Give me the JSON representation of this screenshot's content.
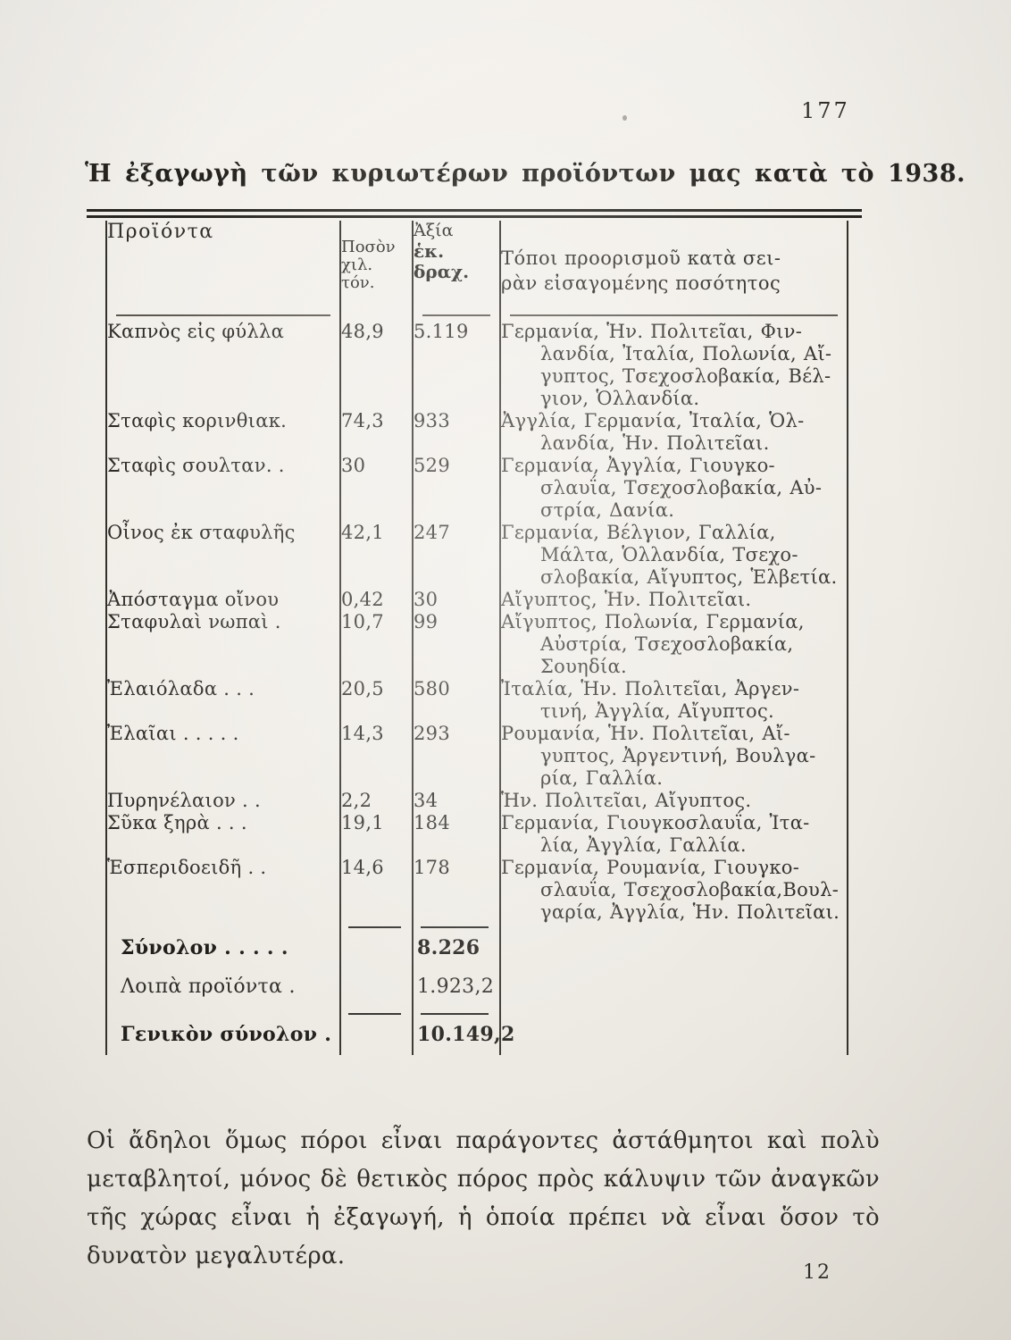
{
  "colors": {
    "paper": "#f1eee8",
    "ink": "#2e2c28",
    "rule": "#2c2a26"
  },
  "page": {
    "number": "177",
    "title": "Ἡ ἐξαγωγὴ τῶν κυριωτέρων προϊόντων μας κατὰ τὸ 1938.",
    "signature": "12"
  },
  "table": {
    "headers": {
      "products": "Προϊόντα",
      "quantity_lines": [
        "Ποσὸν",
        "χιλ.",
        "τόν."
      ],
      "value_line1": "Ἀξία",
      "value_line2": "ἑκ. δραχ.",
      "destinations_lines": [
        "Τόποι προορισμοῦ κατὰ σει-",
        "ρὰν εἰσαγομένης ποσότητος"
      ]
    },
    "rows": [
      {
        "product": "Καπνὸς εἰς φύλλα",
        "quantity": "48,9",
        "value": "5.119",
        "destinations": [
          "Γερμανία, Ἡν. Πολιτεῖαι, Φιν-",
          "λανδία, Ἰταλία, Πολωνία, Αἴ-",
          "γυπτος, Τσεχοσλοβακία, Βέλ-",
          "γιον, Ὁλλανδία."
        ]
      },
      {
        "product": "Σταφὶς κορινθιακ.",
        "quantity": "74,3",
        "value": "933",
        "destinations": [
          "Ἀγγλία, Γερμανία, Ἰταλία, Ὁλ-",
          "λανδία, Ἡν. Πολιτεῖαι."
        ]
      },
      {
        "product": "Σταφὶς σουλταν. .",
        "quantity": "30",
        "value": "529",
        "destinations": [
          "Γερμανία, Ἀγγλία, Γιουγκο-",
          "σλαυΐα, Τσεχοσλοβακία, Αὐ-",
          "στρία, Δανία."
        ]
      },
      {
        "product": "Οἶνος ἐκ σταφυλῆς",
        "quantity": "42,1",
        "value": "247",
        "destinations": [
          "Γερμανία, Βέλγιον, Γαλλία,",
          "Μάλτα, Ὁλλανδία, Τσεχο-",
          "σλοβακία, Αἴγυπτος, Ἑλβετία."
        ]
      },
      {
        "product": "Ἀπόσταγμα οἴνου",
        "quantity": "0,42",
        "value": "30",
        "destinations": [
          "Αἴγυπτος, Ἡν. Πολιτεῖαι."
        ]
      },
      {
        "product": "Σταφυλαὶ νωπαὶ .",
        "quantity": "10,7",
        "value": "99",
        "destinations": [
          "Αἴγυπτος, Πολωνία, Γερμανία,",
          "Αὐστρία, Τσεχοσλοβακία,",
          "Σουηδία."
        ]
      },
      {
        "product": "Ἐλαιόλαδα . . .",
        "quantity": "20,5",
        "value": "580",
        "destinations": [
          "Ἰταλία, Ἡν. Πολιτεῖαι, Ἀργεν-",
          "τινή, Ἀγγλία, Αἴγυπτος."
        ]
      },
      {
        "product": "Ἐλαῖαι . . . . .",
        "quantity": "14,3",
        "value": "293",
        "destinations": [
          "Ρουμανία, Ἡν. Πολιτεῖαι, Αἴ-",
          "γυπτος, Ἀργεντινή, Βουλγα-",
          "ρία, Γαλλία."
        ]
      },
      {
        "product": "Πυρηνέλαιον . .",
        "quantity": "2,2",
        "value": "34",
        "destinations": [
          "Ἡν. Πολιτεῖαι, Αἴγυπτος."
        ]
      },
      {
        "product": "Σῦκα ξηρὰ . . .",
        "quantity": "19,1",
        "value": "184",
        "destinations": [
          "Γερμανία, Γιουγκοσλαυΐα, Ἰτα-",
          "λία, Ἀγγλία, Γαλλία."
        ]
      },
      {
        "product": "Ἑσπεριδοειδῆ . .",
        "quantity": "14,6",
        "value": "178",
        "destinations": [
          "Γερμανία, Ρουμανία, Γιουγκο-",
          "σλαυΐα, Τσεχοσλοβακία,Βουλ-",
          "γαρία, Ἀγγλία, Ἡν. Πολιτεῖαι."
        ]
      }
    ],
    "totals": [
      {
        "label": "Σύνολον . . . . .",
        "value": "8.226"
      },
      {
        "label": "Λοιπὰ προϊόντα .",
        "value": "1.923,2"
      },
      {
        "label": "Γενικὸν σύνολον .",
        "value": "10.149,2"
      }
    ]
  },
  "paragraph_lines": [
    "Οἱ ἄδηλοι ὅμως πόροι εἶναι παράγοντες ἀστάθμητοι καὶ πολὺ",
    "μεταβλητοί, μόνος δὲ θετικὸς πόρος πρὸς κάλυψιν τῶν ἀναγκῶν",
    "τῆς χώρας εἶναι ἡ ἐξαγωγή, ἡ ὁποία πρέπει νὰ εἶναι ὅσον τὸ",
    "δυνατὸν μεγαλυτέρα."
  ]
}
